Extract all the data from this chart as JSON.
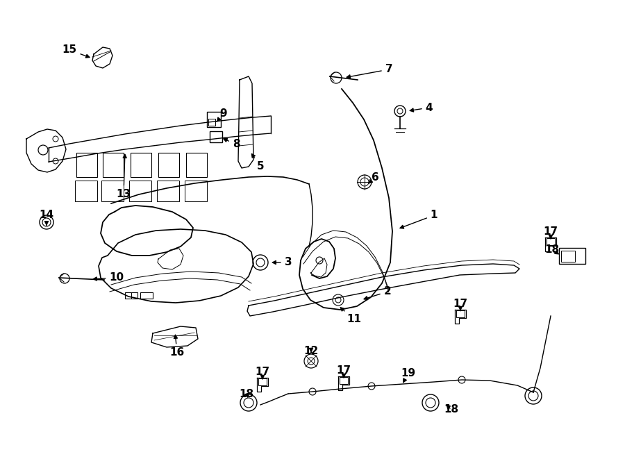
{
  "bg_color": "#ffffff",
  "line_color": "#000000",
  "fig_w": 9.0,
  "fig_h": 6.61,
  "dpi": 100,
  "label_fs": 11,
  "lw": 1.0
}
